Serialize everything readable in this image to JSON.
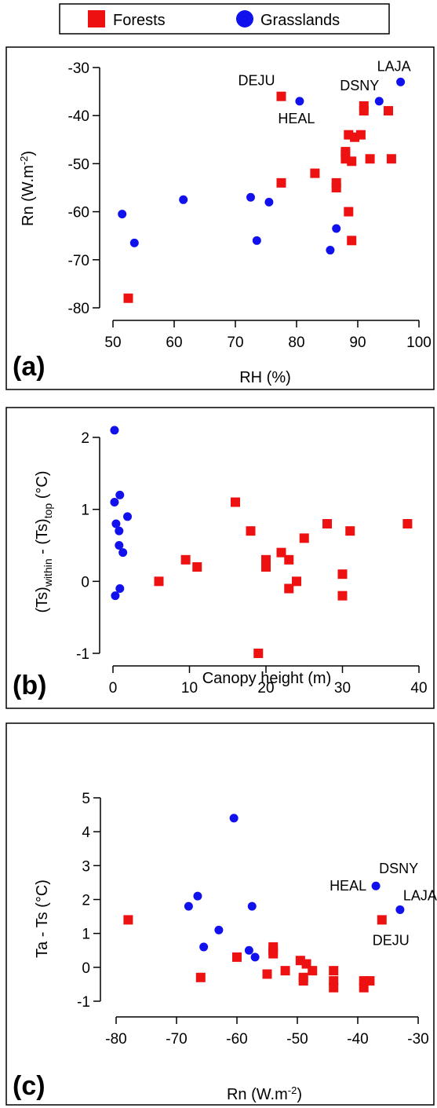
{
  "legend": {
    "items": [
      {
        "label": "Forests",
        "marker": "square",
        "color": "#ee1111"
      },
      {
        "label": "Grasslands",
        "marker": "circle",
        "color": "#1111ee"
      }
    ]
  },
  "colors": {
    "forest": "#ee1111",
    "grass": "#1111ee",
    "axis": "#000000"
  },
  "chart_data": [
    {
      "type": "scatter",
      "panel": "(a)",
      "xlabel": "RH (%)",
      "ylabel": "Rn (W.m-2)",
      "xlim": [
        50,
        100
      ],
      "ylim": [
        -80,
        -30
      ],
      "xticks": [
        "50",
        "60",
        "70",
        "80",
        "90",
        "100"
      ],
      "yticks": [
        "-30",
        "-40",
        "-50",
        "-60",
        "-70",
        "-80"
      ],
      "series": [
        {
          "name": "Forests",
          "points": [
            [
              52.5,
              -78
            ],
            [
              77.5,
              -36
            ],
            [
              77.5,
              -54
            ],
            [
              83,
              -52
            ],
            [
              86.5,
              -54
            ],
            [
              86.5,
              -55
            ],
            [
              88,
              -47.5
            ],
            [
              88,
              -48
            ],
            [
              88,
              -49
            ],
            [
              88.5,
              -44
            ],
            [
              88.5,
              -60
            ],
            [
              89,
              -49.5
            ],
            [
              89,
              -66
            ],
            [
              89.5,
              -44.5
            ],
            [
              90.5,
              -44
            ],
            [
              91,
              -38
            ],
            [
              91,
              -39
            ],
            [
              92,
              -49
            ],
            [
              95,
              -39
            ],
            [
              95.5,
              -49
            ]
          ]
        },
        {
          "name": "Grasslands",
          "points": [
            [
              51.5,
              -60.5
            ],
            [
              53.5,
              -66.5
            ],
            [
              61.5,
              -57.5
            ],
            [
              72.5,
              -57
            ],
            [
              73.5,
              -66
            ],
            [
              75.5,
              -58
            ],
            [
              80.5,
              -37
            ],
            [
              85.5,
              -68
            ],
            [
              86.5,
              -63.5
            ],
            [
              93.5,
              -37
            ],
            [
              97,
              -33
            ]
          ]
        }
      ],
      "annotations": [
        {
          "text": "DEJU",
          "x": 77.5,
          "y": -36
        },
        {
          "text": "HEAL",
          "x": 80.5,
          "y": -37
        },
        {
          "text": "DSNY",
          "x": 93.5,
          "y": -37
        },
        {
          "text": "LAJA",
          "x": 97,
          "y": -33
        }
      ]
    },
    {
      "type": "scatter",
      "panel": "(b)",
      "xlabel": "Canopy height (m)",
      "ylabel": "(Ts)within - (Ts)top (°C)",
      "xlim": [
        0,
        40
      ],
      "ylim": [
        -1,
        2
      ],
      "xticks": [
        "0",
        "10",
        "20",
        "30",
        "40"
      ],
      "yticks": [
        "2",
        "1",
        "0",
        "-1"
      ],
      "series": [
        {
          "name": "Forests",
          "points": [
            [
              6,
              0
            ],
            [
              9.5,
              0.3
            ],
            [
              11,
              0.2
            ],
            [
              16,
              1.1
            ],
            [
              18,
              0.7
            ],
            [
              19,
              -1
            ],
            [
              20,
              0.3
            ],
            [
              20,
              0.2
            ],
            [
              22,
              0.4
            ],
            [
              23,
              0.3
            ],
            [
              23,
              -0.1
            ],
            [
              24,
              0
            ],
            [
              25,
              0.6
            ],
            [
              28,
              0.8
            ],
            [
              30,
              0.1
            ],
            [
              30,
              -0.2
            ],
            [
              31,
              0.7
            ],
            [
              38.5,
              0.8
            ]
          ]
        },
        {
          "name": "Grasslands",
          "points": [
            [
              0.2,
              2.1
            ],
            [
              0.2,
              1.1
            ],
            [
              0.3,
              -0.2
            ],
            [
              0.4,
              0.8
            ],
            [
              0.8,
              0.7
            ],
            [
              0.8,
              0.5
            ],
            [
              0.9,
              1.2
            ],
            [
              0.9,
              -0.1
            ],
            [
              1.3,
              0.4
            ],
            [
              1.9,
              0.9
            ]
          ]
        }
      ]
    },
    {
      "type": "scatter",
      "panel": "(c)",
      "xlabel": "Rn (W.m-2)",
      "ylabel": "Ta - Ts (°C)",
      "xlim": [
        -80,
        -30
      ],
      "ylim": [
        -1,
        5
      ],
      "xticks": [
        "-80",
        "-70",
        "-60",
        "-50",
        "-40",
        "-30"
      ],
      "yticks": [
        "5",
        "4",
        "3",
        "2",
        "1",
        "0",
        "-1"
      ],
      "series": [
        {
          "name": "Forests",
          "points": [
            [
              -78,
              1.4
            ],
            [
              -66,
              -0.3
            ],
            [
              -60,
              0.3
            ],
            [
              -55,
              -0.2
            ],
            [
              -54,
              0.6
            ],
            [
              -54,
              0.5
            ],
            [
              -54,
              0.4
            ],
            [
              -52,
              -0.1
            ],
            [
              -49.5,
              0.2
            ],
            [
              -49,
              -0.3
            ],
            [
              -49,
              -0.4
            ],
            [
              -48.5,
              0.1
            ],
            [
              -47.5,
              -0.1
            ],
            [
              -44,
              -0.1
            ],
            [
              -44,
              -0.4
            ],
            [
              -44,
              -0.6
            ],
            [
              -39,
              -0.6
            ],
            [
              -39,
              -0.4
            ],
            [
              -38,
              -0.4
            ],
            [
              -36,
              1.4
            ]
          ]
        },
        {
          "name": "Grasslands",
          "points": [
            [
              -68,
              1.8
            ],
            [
              -66.5,
              2.1
            ],
            [
              -65.5,
              0.6
            ],
            [
              -63,
              1.1
            ],
            [
              -60.5,
              4.4
            ],
            [
              -58,
              0.5
            ],
            [
              -57.5,
              1.8
            ],
            [
              -57,
              0.3
            ],
            [
              -37,
              2.4
            ],
            [
              -33,
              1.7
            ]
          ]
        }
      ],
      "annotations": [
        {
          "text": "HEAL",
          "x": -37,
          "y": 2.4
        },
        {
          "text": "DSNY",
          "x": -37,
          "y": 2.4
        },
        {
          "text": "LAJA",
          "x": -33,
          "y": 1.7
        },
        {
          "text": "DEJU",
          "x": -36,
          "y": 1.4
        }
      ]
    }
  ]
}
